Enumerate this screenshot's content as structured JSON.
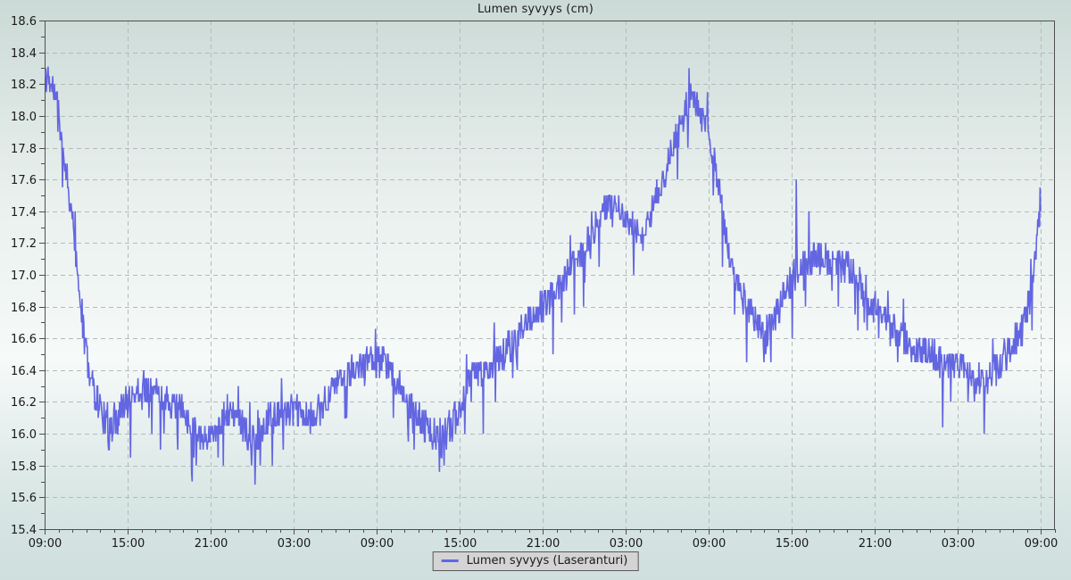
{
  "title": "Lumen syvyys (cm)",
  "legend": {
    "label": "Lumen syvyys (Laseranturi)"
  },
  "colors": {
    "line": "#6366e1",
    "grid": "#b4baba",
    "axis": "#4f4f4f",
    "text": "#1a1a1a",
    "legend_bg": "#d4d4d4",
    "legend_border": "#58585a",
    "bg_top": "#cbdad6",
    "bg_upper": "#e9f0ee",
    "bg_mid": "#f6faf9",
    "bg_lower": "#d8e6e4",
    "bg_bottom": "#cfdfdd"
  },
  "chart_data": {
    "type": "line",
    "title": "Lumen syvyys (cm)",
    "series_name": "Lumen syvyys (Laseranturi)",
    "unit": "cm",
    "ylim": [
      15.4,
      18.6
    ],
    "y_major_step": 0.2,
    "y_minor_step": 0.1,
    "y_tick_labels": [
      "18.6",
      "18.4",
      "18.2",
      "18.0",
      "17.8",
      "17.6",
      "17.4",
      "17.2",
      "17.0",
      "16.8",
      "16.6",
      "16.4",
      "16.2",
      "16.0",
      "15.8",
      "15.6",
      "15.4"
    ],
    "x_tick_labels": [
      "09:00",
      "15:00",
      "21:00",
      "03:00",
      "09:00",
      "15:00",
      "21:00",
      "03:00",
      "09:00",
      "15:00",
      "21:00",
      "03:00",
      "09:00"
    ],
    "x_major_interval_hours": 6,
    "x_minor_interval_hours": 1,
    "x_total_hours": 72,
    "x_overhang_hours": 1,
    "grid": "dashed",
    "legend_position": "bottom-center",
    "noise": {
      "seed": 11,
      "sample_minutes": 2.5,
      "base_amplitude": 0.1,
      "quantize": 0.05,
      "spike_down_chance": 0.05,
      "spike_down_min": 0.1,
      "spike_down_extra": 0.22,
      "spike_up_chance": 0.015,
      "spike_up_min": 0.08,
      "spike_up_extra": 0.14
    },
    "trend_points": [
      [
        0,
        18.25
      ],
      [
        0.4,
        18.22
      ],
      [
        0.7,
        18.15
      ],
      [
        1.0,
        18.03
      ],
      [
        1.3,
        17.83
      ],
      [
        1.6,
        17.62
      ],
      [
        1.9,
        17.44
      ],
      [
        2.2,
        17.18
      ],
      [
        2.5,
        16.92
      ],
      [
        2.8,
        16.66
      ],
      [
        3.2,
        16.4
      ],
      [
        3.7,
        16.24
      ],
      [
        4.2,
        16.14
      ],
      [
        4.6,
        15.97
      ],
      [
        5.0,
        16.05
      ],
      [
        5.6,
        16.16
      ],
      [
        6.4,
        16.25
      ],
      [
        7.1,
        16.3
      ],
      [
        7.8,
        16.27
      ],
      [
        8.6,
        16.22
      ],
      [
        9.4,
        16.17
      ],
      [
        10.2,
        16.12
      ],
      [
        10.9,
        16.02
      ],
      [
        11.6,
        15.97
      ],
      [
        12.4,
        16.04
      ],
      [
        13.1,
        16.13
      ],
      [
        14.0,
        16.09
      ],
      [
        14.7,
        15.99
      ],
      [
        15.2,
        15.94
      ],
      [
        15.7,
        16.05
      ],
      [
        16.6,
        16.12
      ],
      [
        17.6,
        16.15
      ],
      [
        18.6,
        16.12
      ],
      [
        19.3,
        16.08
      ],
      [
        20.0,
        16.18
      ],
      [
        20.8,
        16.28
      ],
      [
        21.6,
        16.36
      ],
      [
        22.6,
        16.41
      ],
      [
        23.6,
        16.44
      ],
      [
        24.1,
        16.47
      ],
      [
        24.7,
        16.42
      ],
      [
        25.5,
        16.33
      ],
      [
        26.3,
        16.2
      ],
      [
        27.1,
        16.08
      ],
      [
        27.9,
        16.02
      ],
      [
        28.6,
        15.93
      ],
      [
        29.3,
        16.04
      ],
      [
        29.9,
        16.14
      ],
      [
        30.6,
        16.34
      ],
      [
        31.1,
        16.42
      ],
      [
        31.9,
        16.38
      ],
      [
        32.6,
        16.45
      ],
      [
        33.6,
        16.55
      ],
      [
        34.4,
        16.64
      ],
      [
        35.1,
        16.72
      ],
      [
        35.9,
        16.8
      ],
      [
        36.6,
        16.85
      ],
      [
        37.4,
        16.95
      ],
      [
        38.1,
        17.05
      ],
      [
        38.9,
        17.15
      ],
      [
        39.6,
        17.29
      ],
      [
        40.4,
        17.4
      ],
      [
        41.1,
        17.45
      ],
      [
        41.9,
        17.35
      ],
      [
        42.6,
        17.29
      ],
      [
        43.3,
        17.25
      ],
      [
        44.1,
        17.45
      ],
      [
        44.9,
        17.65
      ],
      [
        45.6,
        17.85
      ],
      [
        46.2,
        18.0
      ],
      [
        46.7,
        18.12
      ],
      [
        47.2,
        18.06
      ],
      [
        47.7,
        17.96
      ],
      [
        48.2,
        17.81
      ],
      [
        48.7,
        17.57
      ],
      [
        49.2,
        17.27
      ],
      [
        49.8,
        17.01
      ],
      [
        50.5,
        16.85
      ],
      [
        51.3,
        16.71
      ],
      [
        52.1,
        16.61
      ],
      [
        52.9,
        16.75
      ],
      [
        53.6,
        16.89
      ],
      [
        54.3,
        17.01
      ],
      [
        55.0,
        17.09
      ],
      [
        55.8,
        17.13
      ],
      [
        56.6,
        17.1
      ],
      [
        57.4,
        17.09
      ],
      [
        58.1,
        17.04
      ],
      [
        58.9,
        16.95
      ],
      [
        59.6,
        16.85
      ],
      [
        60.4,
        16.75
      ],
      [
        61.1,
        16.69
      ],
      [
        61.9,
        16.61
      ],
      [
        62.6,
        16.55
      ],
      [
        63.6,
        16.51
      ],
      [
        64.6,
        16.47
      ],
      [
        65.4,
        16.45
      ],
      [
        66.1,
        16.43
      ],
      [
        66.9,
        16.39
      ],
      [
        67.6,
        16.35
      ],
      [
        68.4,
        16.35
      ],
      [
        69.1,
        16.45
      ],
      [
        69.9,
        16.55
      ],
      [
        70.6,
        16.65
      ],
      [
        71.1,
        16.8
      ],
      [
        71.5,
        17.0
      ],
      [
        71.8,
        17.25
      ],
      [
        72,
        17.45
      ]
    ],
    "extra_spikes": [
      [
        0.25,
        18.31
      ],
      [
        15.2,
        15.68
      ],
      [
        23.9,
        16.66
      ],
      [
        28.55,
        15.76
      ],
      [
        46.6,
        18.3
      ],
      [
        54.35,
        17.6
      ],
      [
        64.9,
        16.04
      ],
      [
        67.9,
        16.0
      ],
      [
        71.97,
        17.55
      ]
    ]
  }
}
